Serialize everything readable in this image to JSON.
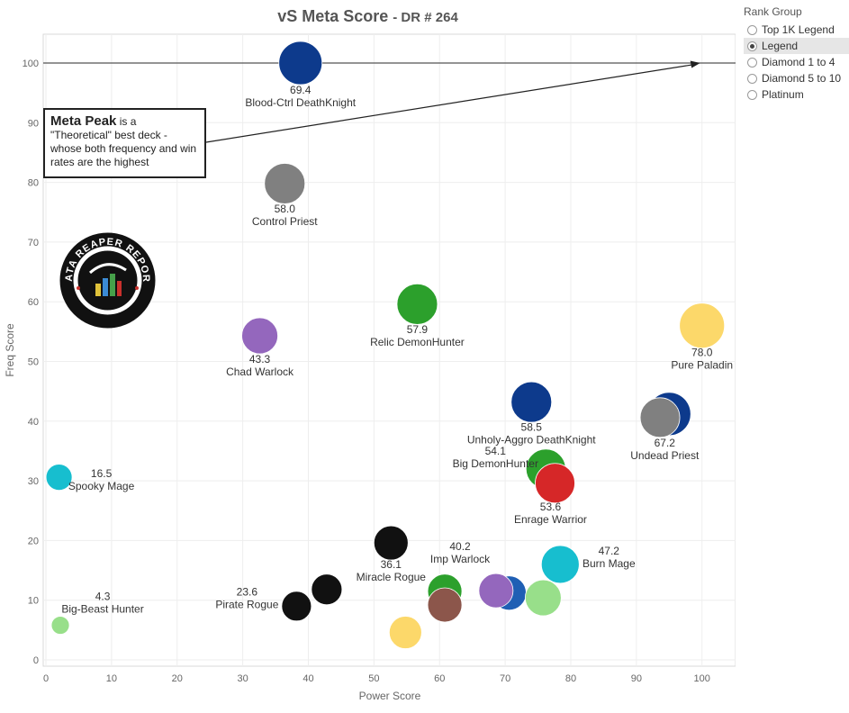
{
  "title": "vS Meta Score",
  "subtitle": "- DR # 264",
  "legend": {
    "title": "Rank Group",
    "items": [
      {
        "label": "Top 1K Legend",
        "selected": false
      },
      {
        "label": "Legend",
        "selected": true
      },
      {
        "label": "Diamond 1 to 4",
        "selected": false
      },
      {
        "label": "Diamond 5 to 10",
        "selected": false
      },
      {
        "label": "Platinum",
        "selected": false
      }
    ]
  },
  "annotation": {
    "bold": "Meta Peak",
    "text": " is a \"Theoretical\" best deck - whose both frequency and win rates are the highest"
  },
  "logo": {
    "text": "DATA REAPER REPORT",
    "icon": "reaper-logo-icon"
  },
  "chart_data": {
    "type": "scatter",
    "xlabel": "Power Score",
    "ylabel": "Freq Score",
    "xlim": [
      0,
      105
    ],
    "ylim": [
      -1,
      105
    ],
    "xticks": [
      0,
      10,
      20,
      30,
      40,
      50,
      60,
      70,
      80,
      90,
      100
    ],
    "yticks": [
      0,
      10,
      20,
      30,
      40,
      50,
      60,
      70,
      80,
      90,
      100
    ],
    "grid": true,
    "reference_line_y": 100,
    "points": [
      {
        "name": "Blood-Ctrl DeathKnight",
        "score": "69.4",
        "x": 38.8,
        "y": 100,
        "color": "#0d3a8c",
        "size": 48
      },
      {
        "name": "Control Priest",
        "score": "58.0",
        "x": 36.4,
        "y": 79.8,
        "color": "#808080",
        "size": 45
      },
      {
        "name": "Relic DemonHunter",
        "score": "57.9",
        "x": 56.6,
        "y": 59.6,
        "color": "#2ca02c",
        "size": 45
      },
      {
        "name": "Chad Warlock",
        "score": "43.3",
        "x": 32.6,
        "y": 54.3,
        "color": "#9467bd",
        "size": 40
      },
      {
        "name": "Pure Paladin",
        "score": "78.0",
        "x": 100,
        "y": 56,
        "color": "#fcd86a",
        "size": 50
      },
      {
        "name": "Unholy-Aggro DeathKnight",
        "score": "58.5",
        "x": 74,
        "y": 43.2,
        "color": "#0d3a8c",
        "size": 45
      },
      {
        "name": "Undead Priest",
        "score": "67.2",
        "x": 95,
        "y": 41.2,
        "color": "#0d3a8c",
        "size": 48
      },
      {
        "name": "",
        "score": "",
        "x": 93.6,
        "y": 40.6,
        "color": "#808080",
        "size": 44
      },
      {
        "name": "Spooky Mage",
        "score": "16.5",
        "x": 2,
        "y": 30.6,
        "color": "#17becf",
        "size": 29
      },
      {
        "name": "Big DemonHunter",
        "score": "54.1",
        "x": 76.2,
        "y": 32,
        "color": "#2ca02c",
        "size": 44
      },
      {
        "name": "Enrage Warrior",
        "score": "53.6",
        "x": 77.6,
        "y": 29.6,
        "color": "#d62728",
        "size": 44
      },
      {
        "name": "Miracle Rogue",
        "score": "36.1",
        "x": 52.6,
        "y": 19.6,
        "color": "#111111",
        "size": 38
      },
      {
        "name": "Imp Warlock",
        "score": "40.2",
        "x": 60.8,
        "y": 11.5,
        "color": "#2ca02c",
        "size": 38
      },
      {
        "name": "Burn Mage",
        "score": "47.2",
        "x": 78.4,
        "y": 16,
        "color": "#17becf",
        "size": 42
      },
      {
        "name": "",
        "score": "",
        "x": 70.6,
        "y": 11.2,
        "color": "#1f5fb4",
        "size": 38
      },
      {
        "name": "",
        "score": "",
        "x": 68.6,
        "y": 11.6,
        "color": "#9467bd",
        "size": 38
      },
      {
        "name": "",
        "score": "",
        "x": 75.8,
        "y": 10.4,
        "color": "#98df8a",
        "size": 40
      },
      {
        "name": "",
        "score": "",
        "x": 60.8,
        "y": 9.2,
        "color": "#8c564b",
        "size": 38
      },
      {
        "name": "",
        "score": "",
        "x": 42.8,
        "y": 11.8,
        "color": "#111111",
        "size": 34
      },
      {
        "name": "Pirate Rogue",
        "score": "23.6",
        "x": 38.2,
        "y": 9,
        "color": "#111111",
        "size": 33
      },
      {
        "name": "",
        "score": "",
        "x": 54.8,
        "y": 4.6,
        "color": "#fcd86a",
        "size": 36
      },
      {
        "name": "Big-Beast Hunter",
        "score": "4.3",
        "x": 2.2,
        "y": 5.8,
        "color": "#98df8a",
        "size": 20
      }
    ]
  }
}
